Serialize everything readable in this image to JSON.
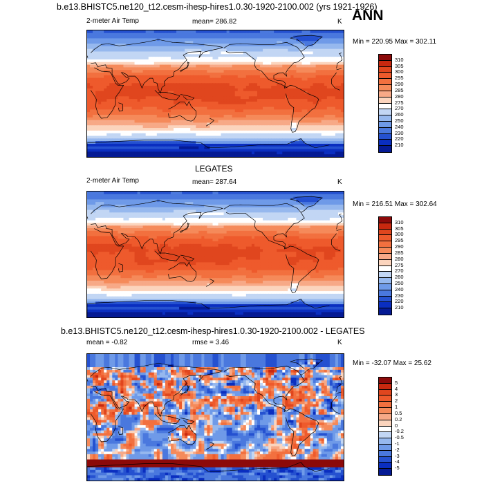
{
  "header": {
    "title": "b.e13.BHISTC5.ne120_t12.cesm-ihesp-hires1.0.30-1920-2100.002 (yrs 1921-1926)",
    "season": "ANN"
  },
  "panels": [
    {
      "id": "model",
      "title": "",
      "variable": "2-meter Air Temp",
      "stat": "mean= 286.82",
      "units": "K",
      "minmax": "Min = 220.95 Max = 302.11",
      "levels": [
        "310",
        "305",
        "300",
        "295",
        "290",
        "285",
        "280",
        "275",
        "270",
        "260",
        "250",
        "240",
        "230",
        "220",
        "210"
      ],
      "colors": [
        "#8c0a0a",
        "#c8280f",
        "#e0461e",
        "#ee5a2c",
        "#f2703f",
        "#f58a5a",
        "#f7a987",
        "#fbd4bd",
        "#ffffff",
        "#c2d6f4",
        "#96b8ee",
        "#6f9ae8",
        "#4a78de",
        "#2551d0",
        "#0a2ec0",
        "#051a94"
      ]
    },
    {
      "id": "obs",
      "title": "LEGATES",
      "variable": "2-meter Air Temp",
      "stat": "mean= 287.64",
      "units": "K",
      "minmax": "Min = 216.51 Max = 302.64",
      "levels": [
        "310",
        "305",
        "300",
        "295",
        "290",
        "285",
        "280",
        "275",
        "270",
        "260",
        "250",
        "240",
        "230",
        "220",
        "210"
      ],
      "colors": [
        "#8c0a0a",
        "#c8280f",
        "#e0461e",
        "#ee5a2c",
        "#f2703f",
        "#f58a5a",
        "#f7a987",
        "#fbd4bd",
        "#ffffff",
        "#c2d6f4",
        "#96b8ee",
        "#6f9ae8",
        "#4a78de",
        "#2551d0",
        "#0a2ec0",
        "#051a94"
      ]
    },
    {
      "id": "diff",
      "title": "b.e13.BHISTC5.ne120_t12.cesm-ihesp-hires1.0.30-1920-2100.002 - LEGATES",
      "variable": "mean =  -0.82",
      "stat": "rmse =   3.46",
      "units": "K",
      "minmax": "Min = -32.07 Max =  25.62",
      "levels": [
        "5",
        "4",
        "3",
        "2",
        "1",
        "0.5",
        "0.2",
        "0",
        "-0.2",
        "-0.5",
        "-1",
        "-2",
        "-3",
        "-4",
        "-5"
      ],
      "colors": [
        "#8c0a0a",
        "#c8280f",
        "#e0461e",
        "#ee5a2c",
        "#f2703f",
        "#f58a5a",
        "#f7a987",
        "#fbd4bd",
        "#ffffff",
        "#c2d6f4",
        "#96b8ee",
        "#6f9ae8",
        "#4a78de",
        "#2551d0",
        "#0a2ec0",
        "#051a94"
      ]
    }
  ]
}
